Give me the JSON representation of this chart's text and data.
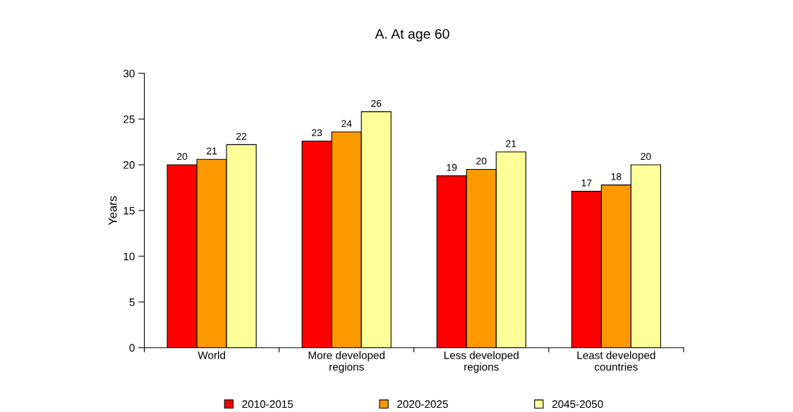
{
  "chart_data": {
    "type": "bar",
    "title": "A. At age 60",
    "ylabel": "Years",
    "categories": [
      "World",
      "More developed\nregions",
      "Less developed\nregions",
      "Least developed\ncountries"
    ],
    "series": [
      {
        "name": "2010-2015",
        "color": "#ff0000",
        "values": [
          20.0,
          22.6,
          18.8,
          17.1
        ],
        "value_labels": [
          "20",
          "23",
          "19",
          "17"
        ]
      },
      {
        "name": "2020-2025",
        "color": "#ff9900",
        "values": [
          20.6,
          23.6,
          19.5,
          17.8
        ],
        "value_labels": [
          "21",
          "24",
          "20",
          "18"
        ]
      },
      {
        "name": "2045-2050",
        "color": "#ffff99",
        "values": [
          22.2,
          25.8,
          21.4,
          20.0
        ],
        "value_labels": [
          "22",
          "26",
          "21",
          "20"
        ]
      }
    ],
    "ylim": [
      0,
      30
    ],
    "yticks": [
      0,
      5,
      10,
      15,
      20,
      25,
      30
    ],
    "grid": false,
    "legend": "bottom"
  }
}
